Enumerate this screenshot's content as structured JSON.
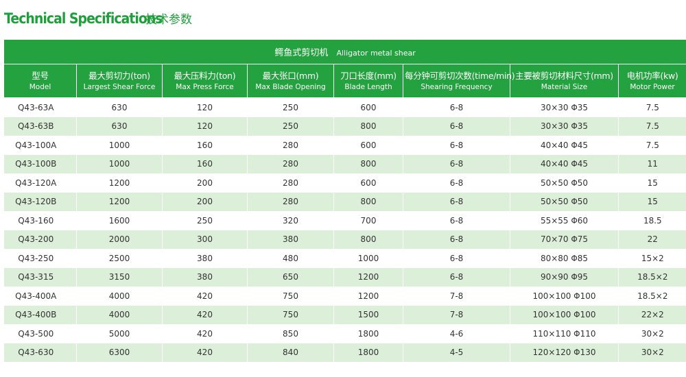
{
  "header": {
    "title_en": "Technical Specifications",
    "title_cn": "技术参数"
  },
  "table": {
    "caption_cn": "鳄鱼式剪切机",
    "caption_en": "Alligator metal shear",
    "columns": [
      {
        "cn": "型号",
        "en": "Model"
      },
      {
        "cn": "最大剪切力(ton)",
        "en": "Largest Shear Force"
      },
      {
        "cn": "最大压料力(ton)",
        "en": "Max Press Force"
      },
      {
        "cn": "最大张口(mm)",
        "en": "Max Blade Opening"
      },
      {
        "cn": "刀口长度(mm)",
        "en": "Blade Length"
      },
      {
        "cn": "每分钟可剪切次数(time/min)",
        "en": "Shearing Frequency"
      },
      {
        "cn": "主要被剪切材料尺寸(mm)",
        "en": "Material Size"
      },
      {
        "cn": "电机功率(kw)",
        "en": "Motor Power"
      }
    ],
    "rows": [
      [
        "Q43-63A",
        "630",
        "120",
        "250",
        "600",
        "6-8",
        "30×30 Φ35",
        "7.5"
      ],
      [
        "Q43-63B",
        "630",
        "120",
        "250",
        "800",
        "6-8",
        "30×30 Φ35",
        "7.5"
      ],
      [
        "Q43-100A",
        "1000",
        "160",
        "280",
        "600",
        "6-8",
        "40×40 Φ45",
        "7.5"
      ],
      [
        "Q43-100B",
        "1000",
        "160",
        "280",
        "800",
        "6-8",
        "40×40 Φ45",
        "11"
      ],
      [
        "Q43-120A",
        "1200",
        "200",
        "280",
        "600",
        "6-8",
        "50×50 Φ50",
        "15"
      ],
      [
        "Q43-120B",
        "1200",
        "200",
        "280",
        "800",
        "6-8",
        "50×50 Φ50",
        "15"
      ],
      [
        "Q43-160",
        "1600",
        "250",
        "320",
        "700",
        "6-8",
        "55×55 Φ60",
        "18.5"
      ],
      [
        "Q43-200",
        "2000",
        "300",
        "380",
        "800",
        "6-8",
        "70×70 Φ75",
        "22"
      ],
      [
        "Q43-250",
        "2500",
        "380",
        "480",
        "1000",
        "6-8",
        "80×80 Φ85",
        "15×2"
      ],
      [
        "Q43-315",
        "3150",
        "380",
        "650",
        "1200",
        "6-8",
        "90×90 Φ95",
        "18.5×2"
      ],
      [
        "Q43-400A",
        "4000",
        "420",
        "750",
        "1200",
        "7-8",
        "100×100 Φ100",
        "18.5×2"
      ],
      [
        "Q43-400B",
        "4000",
        "420",
        "750",
        "1500",
        "7-8",
        "100×100 Φ100",
        "22×2"
      ],
      [
        "Q43-500",
        "5000",
        "420",
        "850",
        "1800",
        "4-6",
        "110×110 Φ110",
        "30×2"
      ],
      [
        "Q43-630",
        "6300",
        "420",
        "840",
        "1800",
        "4-5",
        "120×120 Φ130",
        "30×2"
      ]
    ]
  },
  "colors": {
    "accent_green": "#23a23f",
    "title_green": "#1f9e3c",
    "stripe_green": "#dcefd9",
    "text": "#333333"
  }
}
